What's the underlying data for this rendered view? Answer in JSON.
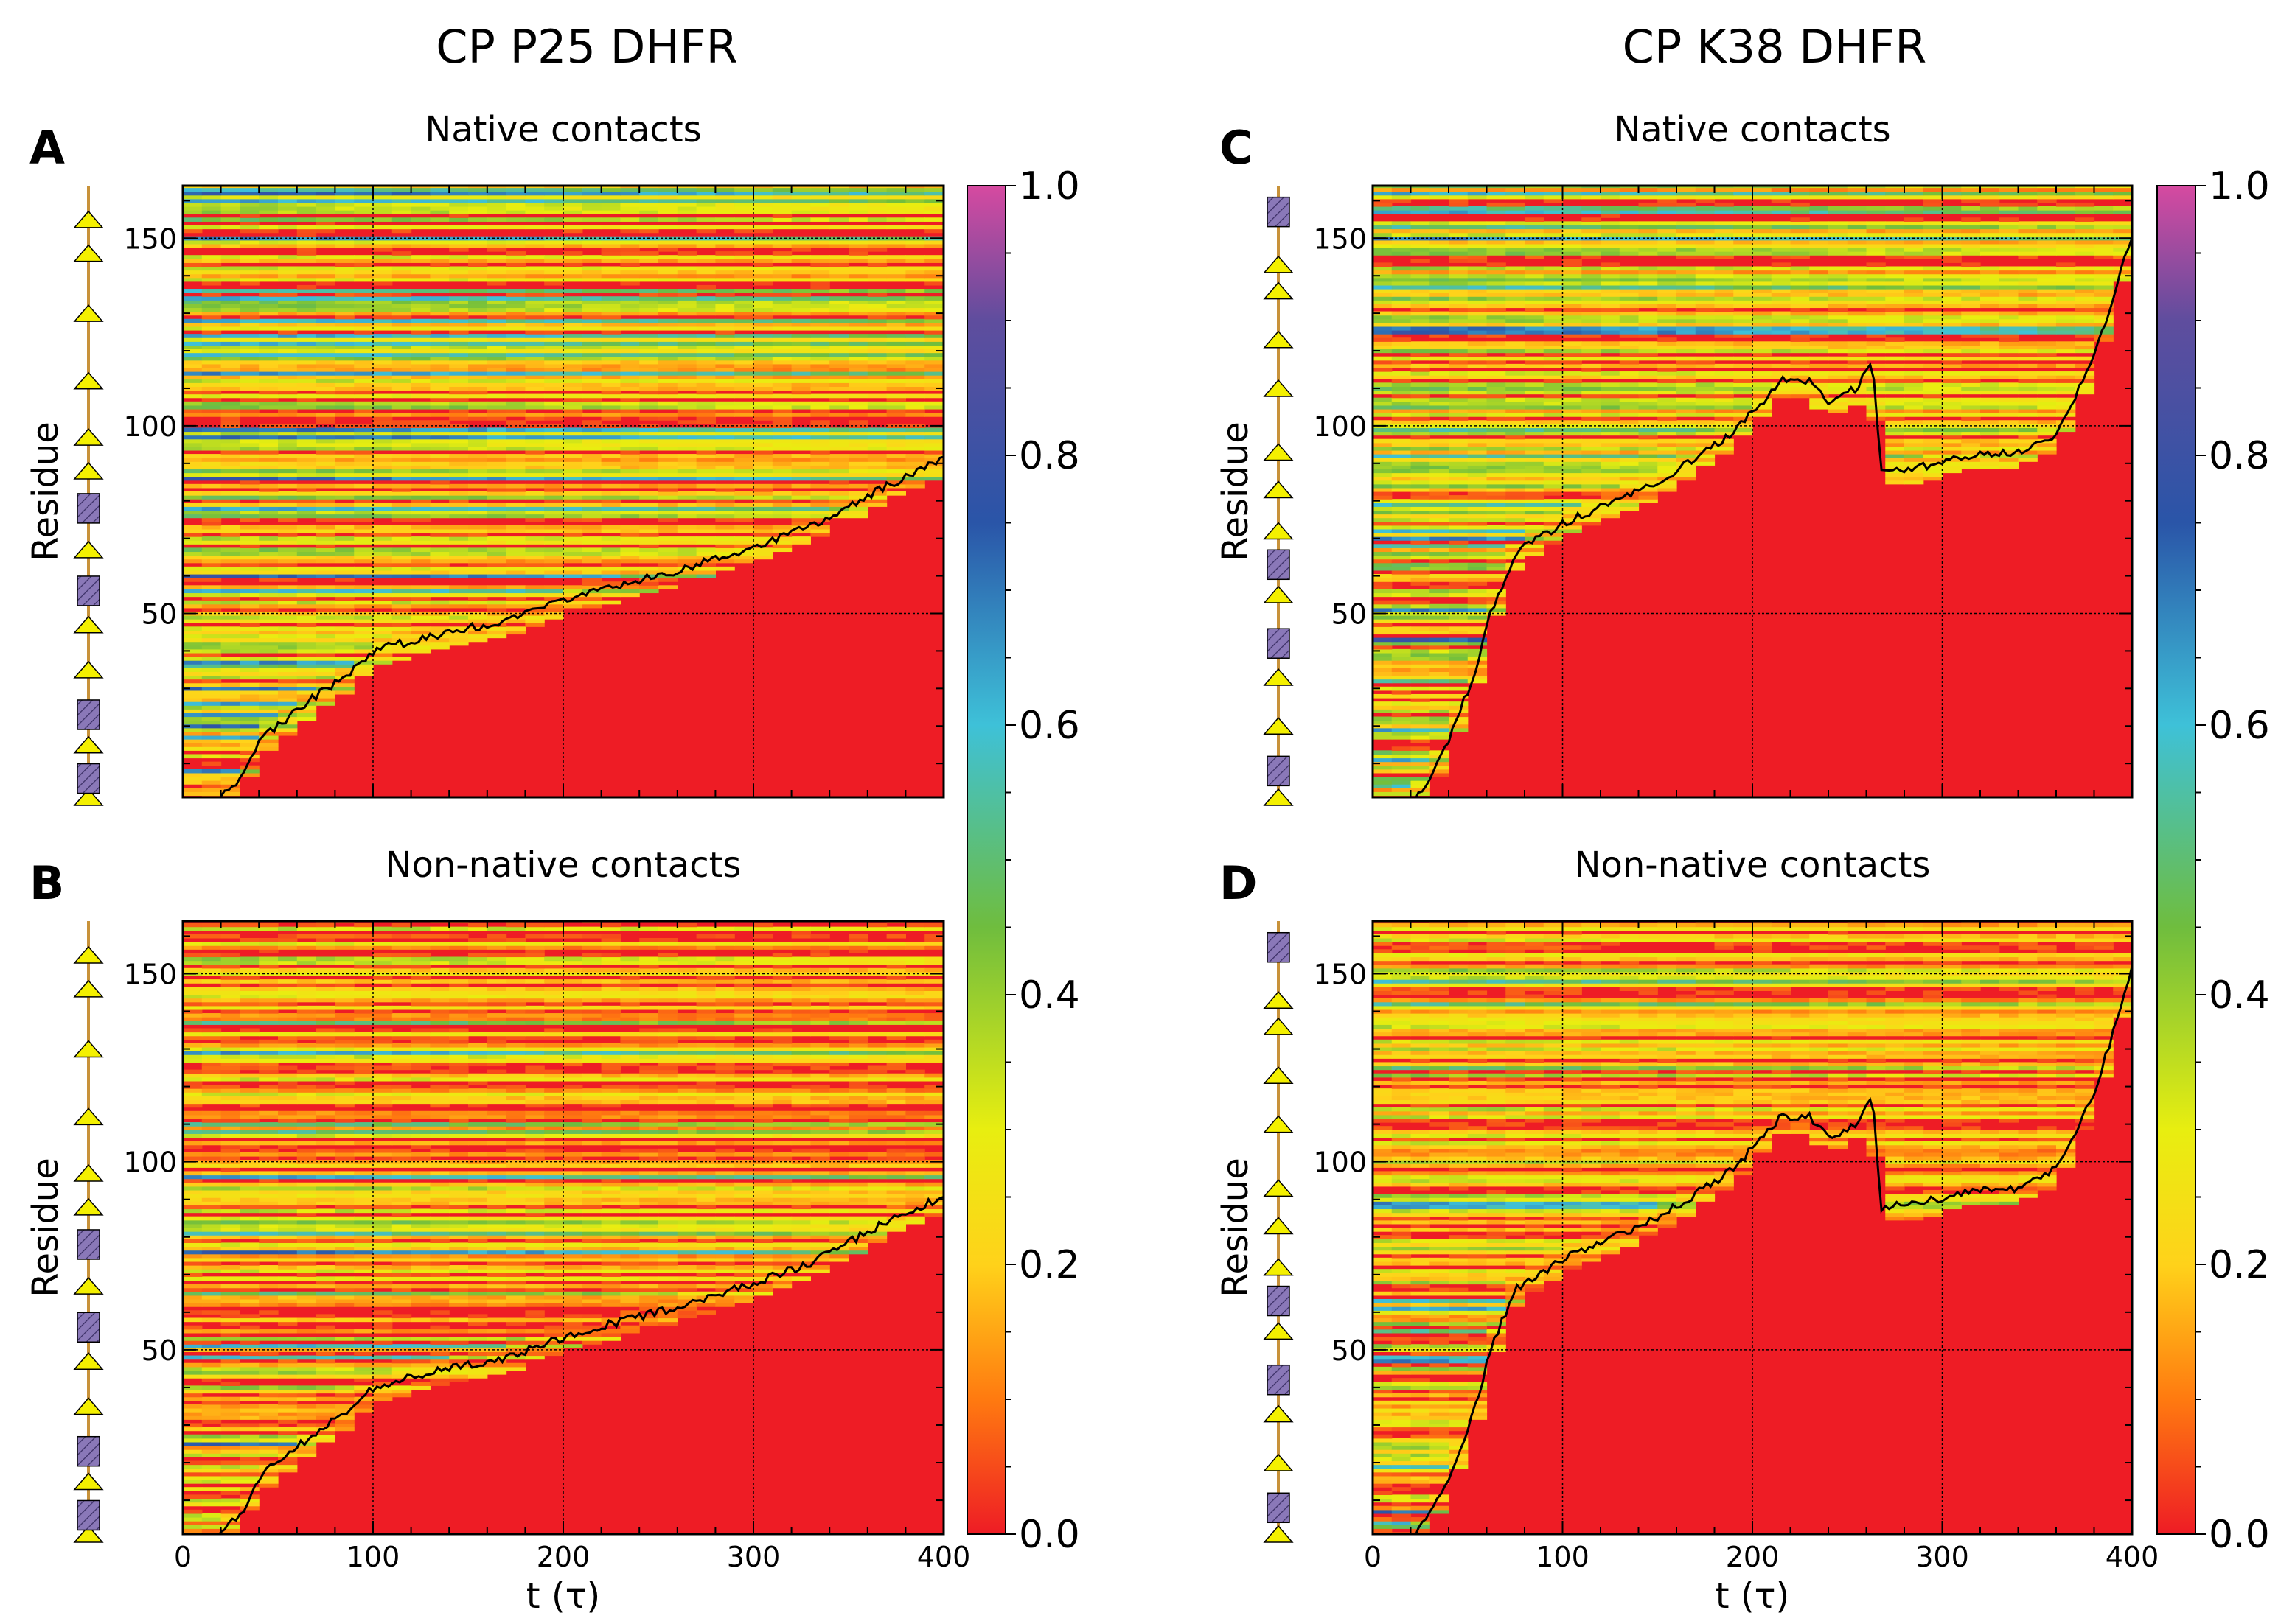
{
  "figure": {
    "column_titles": [
      "CP P25 DHFR",
      "CP K38 DHFR"
    ]
  },
  "colors": {
    "helix": "#8a78b8",
    "strand": "#f4f000",
    "backbone": "#c8923a",
    "trace": "#000000",
    "colormap": [
      "#ee1c25",
      "#ff7a10",
      "#ffd21a",
      "#e8ee10",
      "#6fbd3e",
      "#3ec1d8",
      "#2a55a8",
      "#5f4d9e",
      "#d64aa0"
    ]
  },
  "colorbar": {
    "min": 0.0,
    "max": 1.0,
    "ticks": [
      "0.0",
      "0.2",
      "0.4",
      "0.6",
      "0.8",
      "1.0"
    ]
  },
  "chart_data": [
    {
      "id": "A",
      "panel_label": "A",
      "type": "heatmap",
      "title": "Native contacts",
      "xlabel": "t (τ)",
      "ylabel": "Residue",
      "xlim": [
        0,
        400
      ],
      "ylim": [
        1,
        164
      ],
      "x_ticks": [],
      "y_ticks": [
        "50",
        "100",
        "150"
      ],
      "protein": "CP P25 DHFR",
      "folding_front": [
        [
          18,
          1
        ],
        [
          30,
          6
        ],
        [
          40,
          16
        ],
        [
          55,
          22
        ],
        [
          70,
          28
        ],
        [
          85,
          33
        ],
        [
          100,
          40
        ],
        [
          130,
          44
        ],
        [
          170,
          48
        ],
        [
          210,
          55
        ],
        [
          250,
          60
        ],
        [
          290,
          66
        ],
        [
          330,
          73
        ],
        [
          370,
          84
        ],
        [
          400,
          91
        ]
      ],
      "secondary_structure": [
        {
          "type": "strand",
          "residue": 1
        },
        {
          "type": "helix",
          "residue": 6
        },
        {
          "type": "strand",
          "residue": 15
        },
        {
          "type": "helix",
          "residue": 23
        },
        {
          "type": "strand",
          "residue": 35
        },
        {
          "type": "strand",
          "residue": 47
        },
        {
          "type": "helix",
          "residue": 56
        },
        {
          "type": "strand",
          "residue": 67
        },
        {
          "type": "helix",
          "residue": 78
        },
        {
          "type": "strand",
          "residue": 88
        },
        {
          "type": "strand",
          "residue": 97
        },
        {
          "type": "strand",
          "residue": 112
        },
        {
          "type": "strand",
          "residue": 130
        },
        {
          "type": "strand",
          "residue": 146
        },
        {
          "type": "strand",
          "residue": 155
        }
      ]
    },
    {
      "id": "B",
      "panel_label": "B",
      "type": "heatmap",
      "title": "Non-native contacts",
      "xlabel": "t (τ)",
      "ylabel": "Residue",
      "xlim": [
        0,
        400
      ],
      "ylim": [
        1,
        164
      ],
      "x_ticks": [
        "0",
        "100",
        "200",
        "300",
        "400"
      ],
      "y_ticks": [
        "50",
        "100",
        "150"
      ],
      "protein": "CP P25 DHFR",
      "folding_front": [
        [
          18,
          1
        ],
        [
          30,
          6
        ],
        [
          40,
          16
        ],
        [
          55,
          22
        ],
        [
          70,
          28
        ],
        [
          85,
          33
        ],
        [
          100,
          40
        ],
        [
          130,
          44
        ],
        [
          170,
          48
        ],
        [
          210,
          55
        ],
        [
          250,
          60
        ],
        [
          290,
          66
        ],
        [
          330,
          73
        ],
        [
          370,
          84
        ],
        [
          400,
          91
        ]
      ],
      "secondary_structure": [
        {
          "type": "strand",
          "residue": 1
        },
        {
          "type": "helix",
          "residue": 6
        },
        {
          "type": "strand",
          "residue": 15
        },
        {
          "type": "helix",
          "residue": 23
        },
        {
          "type": "strand",
          "residue": 35
        },
        {
          "type": "strand",
          "residue": 47
        },
        {
          "type": "helix",
          "residue": 56
        },
        {
          "type": "strand",
          "residue": 67
        },
        {
          "type": "helix",
          "residue": 78
        },
        {
          "type": "strand",
          "residue": 88
        },
        {
          "type": "strand",
          "residue": 97
        },
        {
          "type": "strand",
          "residue": 112
        },
        {
          "type": "strand",
          "residue": 130
        },
        {
          "type": "strand",
          "residue": 146
        },
        {
          "type": "strand",
          "residue": 155
        }
      ]
    },
    {
      "id": "C",
      "panel_label": "C",
      "type": "heatmap",
      "title": "Native contacts",
      "xlabel": "t (τ)",
      "ylabel": "Residue",
      "xlim": [
        0,
        400
      ],
      "ylim": [
        1,
        164
      ],
      "x_ticks": [],
      "y_ticks": [
        "50",
        "100",
        "150"
      ],
      "protein": "CP K38 DHFR",
      "folding_front": [
        [
          22,
          1
        ],
        [
          30,
          6
        ],
        [
          40,
          16
        ],
        [
          55,
          36
        ],
        [
          62,
          50
        ],
        [
          75,
          66
        ],
        [
          100,
          74
        ],
        [
          150,
          85
        ],
        [
          190,
          98
        ],
        [
          215,
          112
        ],
        [
          230,
          112
        ],
        [
          240,
          106
        ],
        [
          255,
          110
        ],
        [
          263,
          118
        ],
        [
          268,
          88
        ],
        [
          290,
          89
        ],
        [
          310,
          92
        ],
        [
          340,
          93
        ],
        [
          360,
          98
        ],
        [
          380,
          118
        ],
        [
          400,
          151
        ]
      ],
      "secondary_structure": [
        {
          "type": "strand",
          "residue": 1
        },
        {
          "type": "helix",
          "residue": 8
        },
        {
          "type": "strand",
          "residue": 20
        },
        {
          "type": "strand",
          "residue": 33
        },
        {
          "type": "helix",
          "residue": 42
        },
        {
          "type": "strand",
          "residue": 55
        },
        {
          "type": "helix",
          "residue": 63
        },
        {
          "type": "strand",
          "residue": 72
        },
        {
          "type": "strand",
          "residue": 83
        },
        {
          "type": "strand",
          "residue": 93
        },
        {
          "type": "strand",
          "residue": 110
        },
        {
          "type": "strand",
          "residue": 123
        },
        {
          "type": "strand",
          "residue": 136
        },
        {
          "type": "strand",
          "residue": 143
        },
        {
          "type": "helix",
          "residue": 157
        }
      ]
    },
    {
      "id": "D",
      "panel_label": "D",
      "type": "heatmap",
      "title": "Non-native contacts",
      "xlabel": "t (τ)",
      "ylabel": "Residue",
      "xlim": [
        0,
        400
      ],
      "ylim": [
        1,
        164
      ],
      "x_ticks": [
        "0",
        "100",
        "200",
        "300",
        "400"
      ],
      "y_ticks": [
        "50",
        "100",
        "150"
      ],
      "protein": "CP K38 DHFR",
      "folding_front": [
        [
          22,
          1
        ],
        [
          30,
          6
        ],
        [
          40,
          16
        ],
        [
          55,
          36
        ],
        [
          62,
          50
        ],
        [
          75,
          66
        ],
        [
          100,
          74
        ],
        [
          150,
          85
        ],
        [
          190,
          98
        ],
        [
          215,
          112
        ],
        [
          230,
          112
        ],
        [
          240,
          106
        ],
        [
          255,
          110
        ],
        [
          263,
          118
        ],
        [
          268,
          88
        ],
        [
          290,
          89
        ],
        [
          310,
          92
        ],
        [
          340,
          93
        ],
        [
          360,
          98
        ],
        [
          380,
          118
        ],
        [
          400,
          151
        ]
      ],
      "secondary_structure": [
        {
          "type": "strand",
          "residue": 1
        },
        {
          "type": "helix",
          "residue": 8
        },
        {
          "type": "strand",
          "residue": 20
        },
        {
          "type": "strand",
          "residue": 33
        },
        {
          "type": "helix",
          "residue": 42
        },
        {
          "type": "strand",
          "residue": 55
        },
        {
          "type": "helix",
          "residue": 63
        },
        {
          "type": "strand",
          "residue": 72
        },
        {
          "type": "strand",
          "residue": 83
        },
        {
          "type": "strand",
          "residue": 93
        },
        {
          "type": "strand",
          "residue": 110
        },
        {
          "type": "strand",
          "residue": 123
        },
        {
          "type": "strand",
          "residue": 136
        },
        {
          "type": "strand",
          "residue": 143
        },
        {
          "type": "helix",
          "residue": 157
        }
      ]
    }
  ]
}
